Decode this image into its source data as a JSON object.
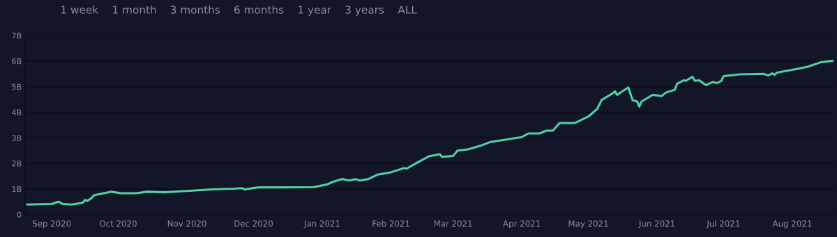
{
  "chart_data": {
    "type": "line",
    "annotations": [
      "1 week",
      "1 month",
      "3 months",
      "6 months",
      "1 year",
      "3 years",
      "ALL"
    ],
    "x": [
      "2020-08-21",
      "2020-09-01",
      "2020-09-04",
      "2020-09-06",
      "2020-09-10",
      "2020-09-15",
      "2020-09-16",
      "2020-09-17",
      "2020-09-19",
      "2020-09-20",
      "2020-09-25",
      "2020-09-28",
      "2020-10-02",
      "2020-10-09",
      "2020-10-14",
      "2020-10-22",
      "2020-11-01",
      "2020-11-12",
      "2020-11-22",
      "2020-11-26",
      "2020-11-27",
      "2020-12-03",
      "2020-12-13",
      "2020-12-28",
      "2021-01-03",
      "2021-01-06",
      "2021-01-10",
      "2021-01-13",
      "2021-01-16",
      "2021-01-18",
      "2021-01-22",
      "2021-01-26",
      "2021-02-01",
      "2021-02-07",
      "2021-02-08",
      "2021-02-13",
      "2021-02-18",
      "2021-02-23",
      "2021-02-24",
      "2021-03-01",
      "2021-03-03",
      "2021-03-08",
      "2021-03-14",
      "2021-03-18",
      "2021-04-01",
      "2021-04-04",
      "2021-04-09",
      "2021-04-12",
      "2021-04-15",
      "2021-04-18",
      "2021-04-25",
      "2021-05-01",
      "2021-05-05",
      "2021-05-07",
      "2021-05-12",
      "2021-05-13",
      "2021-05-14",
      "2021-05-19",
      "2021-05-21",
      "2021-05-23",
      "2021-05-24",
      "2021-05-25",
      "2021-05-30",
      "2021-06-03",
      "2021-06-05",
      "2021-06-09",
      "2021-06-10",
      "2021-06-13",
      "2021-06-14",
      "2021-06-17",
      "2021-06-18",
      "2021-06-20",
      "2021-06-23",
      "2021-06-26",
      "2021-06-28",
      "2021-06-30",
      "2021-07-01",
      "2021-07-08",
      "2021-07-19",
      "2021-07-21",
      "2021-07-23",
      "2021-07-24",
      "2021-07-25",
      "2021-08-03",
      "2021-08-08",
      "2021-08-14",
      "2021-08-19"
    ],
    "series": [
      {
        "color": "#4fd1a5",
        "values": [
          0.39,
          0.41,
          0.5,
          0.41,
          0.39,
          0.46,
          0.57,
          0.53,
          0.64,
          0.75,
          0.84,
          0.89,
          0.83,
          0.83,
          0.89,
          0.87,
          0.92,
          0.98,
          1.01,
          1.03,
          0.98,
          1.06,
          1.06,
          1.07,
          1.17,
          1.28,
          1.39,
          1.33,
          1.38,
          1.33,
          1.39,
          1.56,
          1.65,
          1.82,
          1.79,
          2.04,
          2.27,
          2.36,
          2.25,
          2.29,
          2.5,
          2.55,
          2.71,
          2.84,
          3.03,
          3.17,
          3.17,
          3.28,
          3.28,
          3.58,
          3.58,
          3.83,
          4.13,
          4.48,
          4.74,
          4.82,
          4.68,
          4.97,
          4.47,
          4.42,
          4.22,
          4.42,
          4.68,
          4.63,
          4.77,
          4.88,
          5.11,
          5.25,
          5.23,
          5.39,
          5.23,
          5.25,
          5.06,
          5.18,
          5.14,
          5.23,
          5.41,
          5.48,
          5.5,
          5.44,
          5.52,
          5.46,
          5.55,
          5.69,
          5.78,
          5.96,
          6.01
        ]
      }
    ],
    "xlim": [
      "2020-08-20",
      "2021-08-20"
    ],
    "xticks": [
      {
        "value": "2020-09-01",
        "label": "Sep 2020"
      },
      {
        "value": "2020-10-01",
        "label": "Oct 2020"
      },
      {
        "value": "2020-11-01",
        "label": "Nov 2020"
      },
      {
        "value": "2020-12-01",
        "label": "Dec 2020"
      },
      {
        "value": "2021-01-01",
        "label": "Jan 2021"
      },
      {
        "value": "2021-02-01",
        "label": "Feb 2021"
      },
      {
        "value": "2021-03-01",
        "label": "Mar 2021"
      },
      {
        "value": "2021-04-01",
        "label": "Apr 2021"
      },
      {
        "value": "2021-05-01",
        "label": "May 2021"
      },
      {
        "value": "2021-06-01",
        "label": "Jun 2021"
      },
      {
        "value": "2021-07-01",
        "label": "Jul 2021"
      },
      {
        "value": "2021-08-01",
        "label": "Aug 2021"
      }
    ],
    "ylim": [
      0,
      7
    ],
    "yticks": [
      0,
      {
        "value": 1,
        "label": "1B"
      },
      {
        "value": 2,
        "label": "2B"
      },
      {
        "value": 3,
        "label": "3B"
      },
      {
        "value": 4,
        "label": "4B"
      },
      {
        "value": 5,
        "label": "5B"
      },
      {
        "value": 6,
        "label": "6B"
      },
      {
        "value": 7,
        "label": "7B"
      }
    ],
    "grid": "y",
    "legend": false,
    "marker": "none",
    "line_style": "solid"
  }
}
